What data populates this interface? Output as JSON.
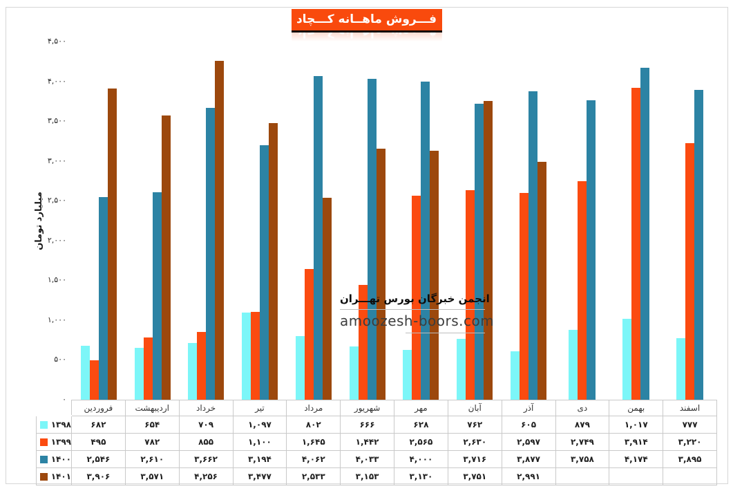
{
  "title": "فـــروش ماهــانه کـــچاد",
  "watermark": {
    "line1": "انجمن خبرگان بورس تهـــران",
    "line2": "amoozesh-boors.com"
  },
  "y_axis": {
    "title": "میلیارد تومان",
    "ticks": [
      "۴,۵۰۰",
      "۴,۰۰۰",
      "۳,۵۰۰",
      "۳,۰۰۰",
      "۲,۵۰۰",
      "۲,۰۰۰",
      "۱,۵۰۰",
      "۱,۰۰۰",
      "۵۰۰",
      "۰"
    ]
  },
  "colors": {
    "series_1398": "#7cf6f8",
    "series_1399": "#fb4b10",
    "series_1400": "#2c83a4",
    "series_1401": "#9c480d",
    "title_bg": "#f94a0d",
    "table_border": "#c9c9c9"
  },
  "chart_data": {
    "type": "bar",
    "title": "فـــروش ماهــانه کـــچاد",
    "ylabel": "میلیارد تومان",
    "ylim": [
      0,
      4500
    ],
    "grid": false,
    "legend_position": "table-left",
    "categories": [
      "فروردین",
      "اردیبهشت",
      "خرداد",
      "تیر",
      "مرداد",
      "شهریور",
      "مهر",
      "آبان",
      "آذر",
      "دی",
      "بهمن",
      "اسفند"
    ],
    "series": [
      {
        "name": "۱۳۹۸",
        "key": "1398",
        "color": "#7cf6f8",
        "values": [
          682,
          654,
          709,
          1097,
          802,
          666,
          628,
          762,
          605,
          879,
          1017,
          777
        ],
        "labels": [
          "۶۸۲",
          "۶۵۴",
          "۷۰۹",
          "۱,۰۹۷",
          "۸۰۲",
          "۶۶۶",
          "۶۲۸",
          "۷۶۲",
          "۶۰۵",
          "۸۷۹",
          "۱,۰۱۷",
          "۷۷۷"
        ]
      },
      {
        "name": "۱۳۹۹",
        "key": "1399",
        "color": "#fb4b10",
        "values": [
          495,
          782,
          855,
          1100,
          1645,
          1442,
          2565,
          2630,
          2597,
          2749,
          3914,
          3220
        ],
        "labels": [
          "۴۹۵",
          "۷۸۲",
          "۸۵۵",
          "۱,۱۰۰",
          "۱,۶۴۵",
          "۱,۴۴۲",
          "۲,۵۶۵",
          "۲,۶۳۰",
          "۲,۵۹۷",
          "۲,۷۴۹",
          "۳,۹۱۴",
          "۳,۲۲۰"
        ]
      },
      {
        "name": "۱۴۰۰",
        "key": "1400",
        "color": "#2c83a4",
        "values": [
          2546,
          2610,
          3662,
          3194,
          4062,
          4033,
          4000,
          3716,
          3877,
          3758,
          4174,
          3895
        ],
        "labels": [
          "۲,۵۴۶",
          "۲,۶۱۰",
          "۳,۶۶۲",
          "۳,۱۹۴",
          "۴,۰۶۲",
          "۴,۰۳۳",
          "۴,۰۰۰",
          "۳,۷۱۶",
          "۳,۸۷۷",
          "۳,۷۵۸",
          "۴,۱۷۴",
          "۳,۸۹۵"
        ]
      },
      {
        "name": "۱۴۰۱",
        "key": "1401",
        "color": "#9c480d",
        "values": [
          3906,
          3571,
          4256,
          3477,
          2533,
          3153,
          3130,
          3751,
          2991,
          null,
          null,
          null
        ],
        "labels": [
          "۳,۹۰۶",
          "۳,۵۷۱",
          "۴,۲۵۶",
          "۳,۴۷۷",
          "۲,۵۳۳",
          "۳,۱۵۳",
          "۳,۱۳۰",
          "۳,۷۵۱",
          "۲,۹۹۱",
          "",
          "",
          ""
        ]
      }
    ]
  }
}
